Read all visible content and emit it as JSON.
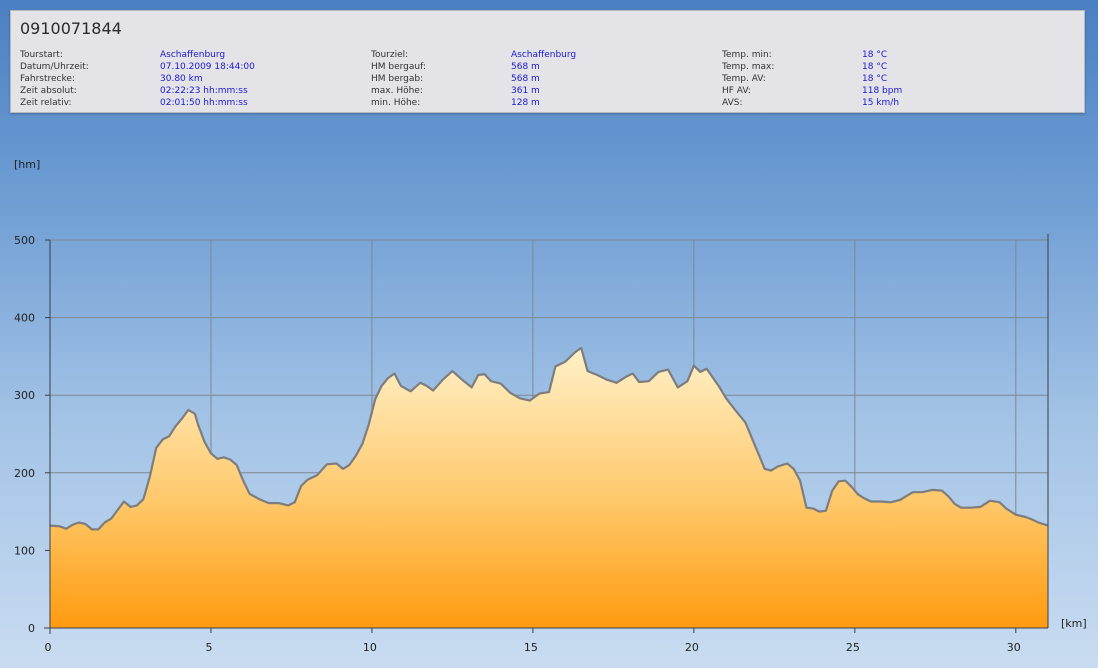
{
  "tour": {
    "id": "0910071844",
    "columns": [
      [
        {
          "label": "Tourstart:",
          "value": "Aschaffenburg"
        },
        {
          "label": "Datum/Uhrzeit:",
          "value": "07.10.2009 18:44:00"
        },
        {
          "label": "Fahrstrecke:",
          "value": "30.80 km"
        },
        {
          "label": "Zeit absolut:",
          "value": "02:22:23 hh:mm:ss"
        },
        {
          "label": "Zeit relativ:",
          "value": "02:01:50 hh:mm:ss"
        }
      ],
      [
        {
          "label": "Tourziel:",
          "value": "Aschaffenburg"
        },
        {
          "label": "HM bergauf:",
          "value": "568 m"
        },
        {
          "label": "HM bergab:",
          "value": "568 m"
        },
        {
          "label": "max. Höhe:",
          "value": "361 m"
        },
        {
          "label": "min. Höhe:",
          "value": "128 m"
        }
      ],
      [
        {
          "label": "Temp. min:",
          "value": "18 °C"
        },
        {
          "label": "Temp. max:",
          "value": "18 °C"
        },
        {
          "label": "Temp. AV:",
          "value": "18 °C"
        },
        {
          "label": "HF AV:",
          "value": "118 bpm"
        },
        {
          "label": "AVS:",
          "value": "15 km/h"
        }
      ]
    ]
  },
  "chart_data": {
    "type": "area",
    "title": "",
    "xlabel": "[km]",
    "ylabel": "[hm]",
    "xlim": [
      0,
      31
    ],
    "ylim": [
      0,
      500
    ],
    "xticks": [
      0,
      5,
      10,
      15,
      20,
      25,
      30
    ],
    "yticks": [
      0,
      100,
      200,
      300,
      400,
      500
    ],
    "grid": true,
    "colors": {
      "fill_top": "#fff1c9",
      "fill_bottom": "#ff9b0f",
      "line": "#7d7d7d",
      "grid": "#7e8792",
      "axis": "#3a3f48"
    },
    "x": [
      0,
      0.3,
      0.5,
      0.7,
      0.9,
      1.1,
      1.3,
      1.5,
      1.7,
      1.9,
      2.1,
      2.3,
      2.5,
      2.7,
      2.9,
      3.1,
      3.3,
      3.5,
      3.7,
      3.9,
      4.1,
      4.3,
      4.5,
      4.6,
      4.8,
      5.0,
      5.2,
      5.4,
      5.6,
      5.8,
      6.0,
      6.2,
      6.5,
      6.8,
      7.1,
      7.4,
      7.6,
      7.8,
      8.0,
      8.3,
      8.6,
      8.9,
      9.1,
      9.3,
      9.5,
      9.7,
      9.9,
      10.1,
      10.3,
      10.5,
      10.7,
      10.9,
      11.2,
      11.5,
      11.7,
      11.9,
      12.2,
      12.5,
      12.8,
      13.1,
      13.3,
      13.5,
      13.7,
      14.0,
      14.3,
      14.6,
      14.9,
      15.2,
      15.5,
      15.7,
      16.0,
      16.3,
      16.5,
      16.7,
      17.0,
      17.3,
      17.6,
      17.9,
      18.1,
      18.3,
      18.6,
      18.9,
      19.2,
      19.5,
      19.8,
      20.0,
      20.2,
      20.4,
      20.6,
      20.8,
      21.0,
      21.3,
      21.6,
      21.9,
      22.2,
      22.4,
      22.6,
      22.9,
      23.1,
      23.3,
      23.5,
      23.7,
      23.9,
      24.1,
      24.3,
      24.5,
      24.7,
      24.9,
      25.1,
      25.3,
      25.5,
      25.8,
      26.1,
      26.4,
      26.6,
      26.8,
      27.1,
      27.4,
      27.7,
      27.9,
      28.1,
      28.3,
      28.6,
      28.9,
      29.2,
      29.5,
      29.7,
      30.0,
      30.3,
      30.5,
      30.7,
      31.0
    ],
    "y": [
      132,
      131,
      128,
      133,
      136,
      134,
      127,
      127,
      136,
      141,
      152,
      163,
      156,
      158,
      166,
      195,
      232,
      243,
      247,
      260,
      270,
      281,
      276,
      262,
      240,
      225,
      218,
      220,
      217,
      210,
      190,
      173,
      166,
      161,
      161,
      158,
      162,
      183,
      191,
      197,
      211,
      212,
      205,
      210,
      222,
      237,
      262,
      295,
      312,
      322,
      328,
      312,
      305,
      316,
      312,
      306,
      320,
      331,
      320,
      310,
      326,
      327,
      318,
      315,
      303,
      296,
      293,
      302,
      304,
      337,
      343,
      355,
      361,
      331,
      326,
      320,
      316,
      324,
      328,
      317,
      318,
      330,
      333,
      310,
      318,
      338,
      330,
      334,
      322,
      310,
      296,
      280,
      265,
      235,
      205,
      203,
      208,
      212,
      205,
      190,
      155,
      154,
      150,
      151,
      177,
      189,
      190,
      182,
      172,
      167,
      163,
      163,
      162,
      165,
      170,
      175,
      175,
      178,
      177,
      170,
      160,
      155,
      155,
      156,
      164,
      162,
      154,
      146,
      143,
      140,
      136,
      132
    ]
  }
}
